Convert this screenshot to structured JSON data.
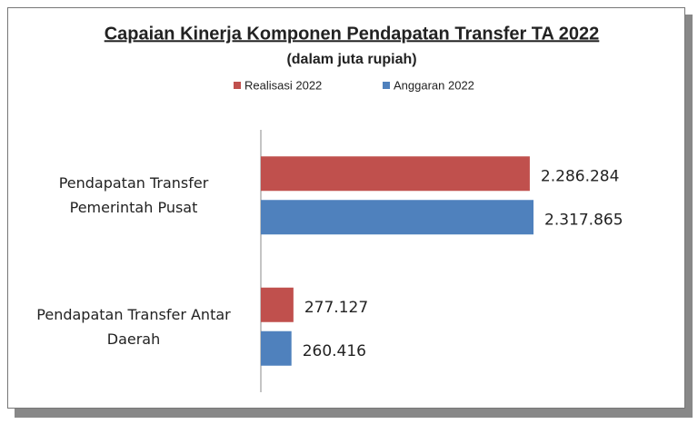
{
  "chart_data": {
    "type": "bar",
    "orientation": "horizontal",
    "title": "Capaian Kinerja Komponen Pendapatan Transfer TA 2022",
    "subtitle": "(dalam juta rupiah)",
    "categories": [
      "Pendapatan Transfer Pemerintah Pusat",
      "Pendapatan Transfer Antar Daerah"
    ],
    "series": [
      {
        "name": "Realisasi 2022",
        "color": "#c0504d",
        "values": [
          2286284,
          277127
        ],
        "value_labels": [
          "2.286.284",
          "277.127"
        ]
      },
      {
        "name": "Anggaran 2022",
        "color": "#4f81bd",
        "values": [
          2317865,
          260416
        ],
        "value_labels": [
          "2.317.865",
          "260.416"
        ]
      }
    ],
    "legend": "top"
  }
}
